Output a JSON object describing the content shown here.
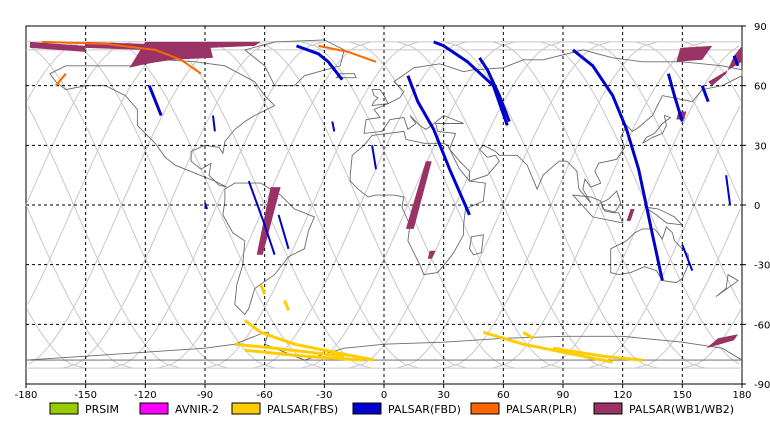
{
  "map": {
    "longitude_range": [
      -180,
      180
    ],
    "latitude_range": [
      -90,
      90
    ],
    "x_ticks": [
      "-180",
      "-150",
      "-120",
      "-90",
      "-60",
      "-30",
      "0",
      "30",
      "60",
      "90",
      "120",
      "150",
      "180"
    ],
    "y_ticks": [
      "90",
      "60",
      "30",
      "0",
      "-30",
      "-60",
      "-90"
    ],
    "grid": "dashed every 30 degrees"
  },
  "legend": [
    {
      "label": "PRSIM",
      "color": "#99cc00"
    },
    {
      "label": "AVNIR-2",
      "color": "#ff00ff"
    },
    {
      "label": "PALSAR(FBS)",
      "color": "#ffcc00"
    },
    {
      "label": "PALSAR(FBD)",
      "color": "#0000cc"
    },
    {
      "label": "PALSAR(PLR)",
      "color": "#ff6600"
    },
    {
      "label": "PALSAR(WB1/WB2)",
      "color": "#993366"
    }
  ]
}
